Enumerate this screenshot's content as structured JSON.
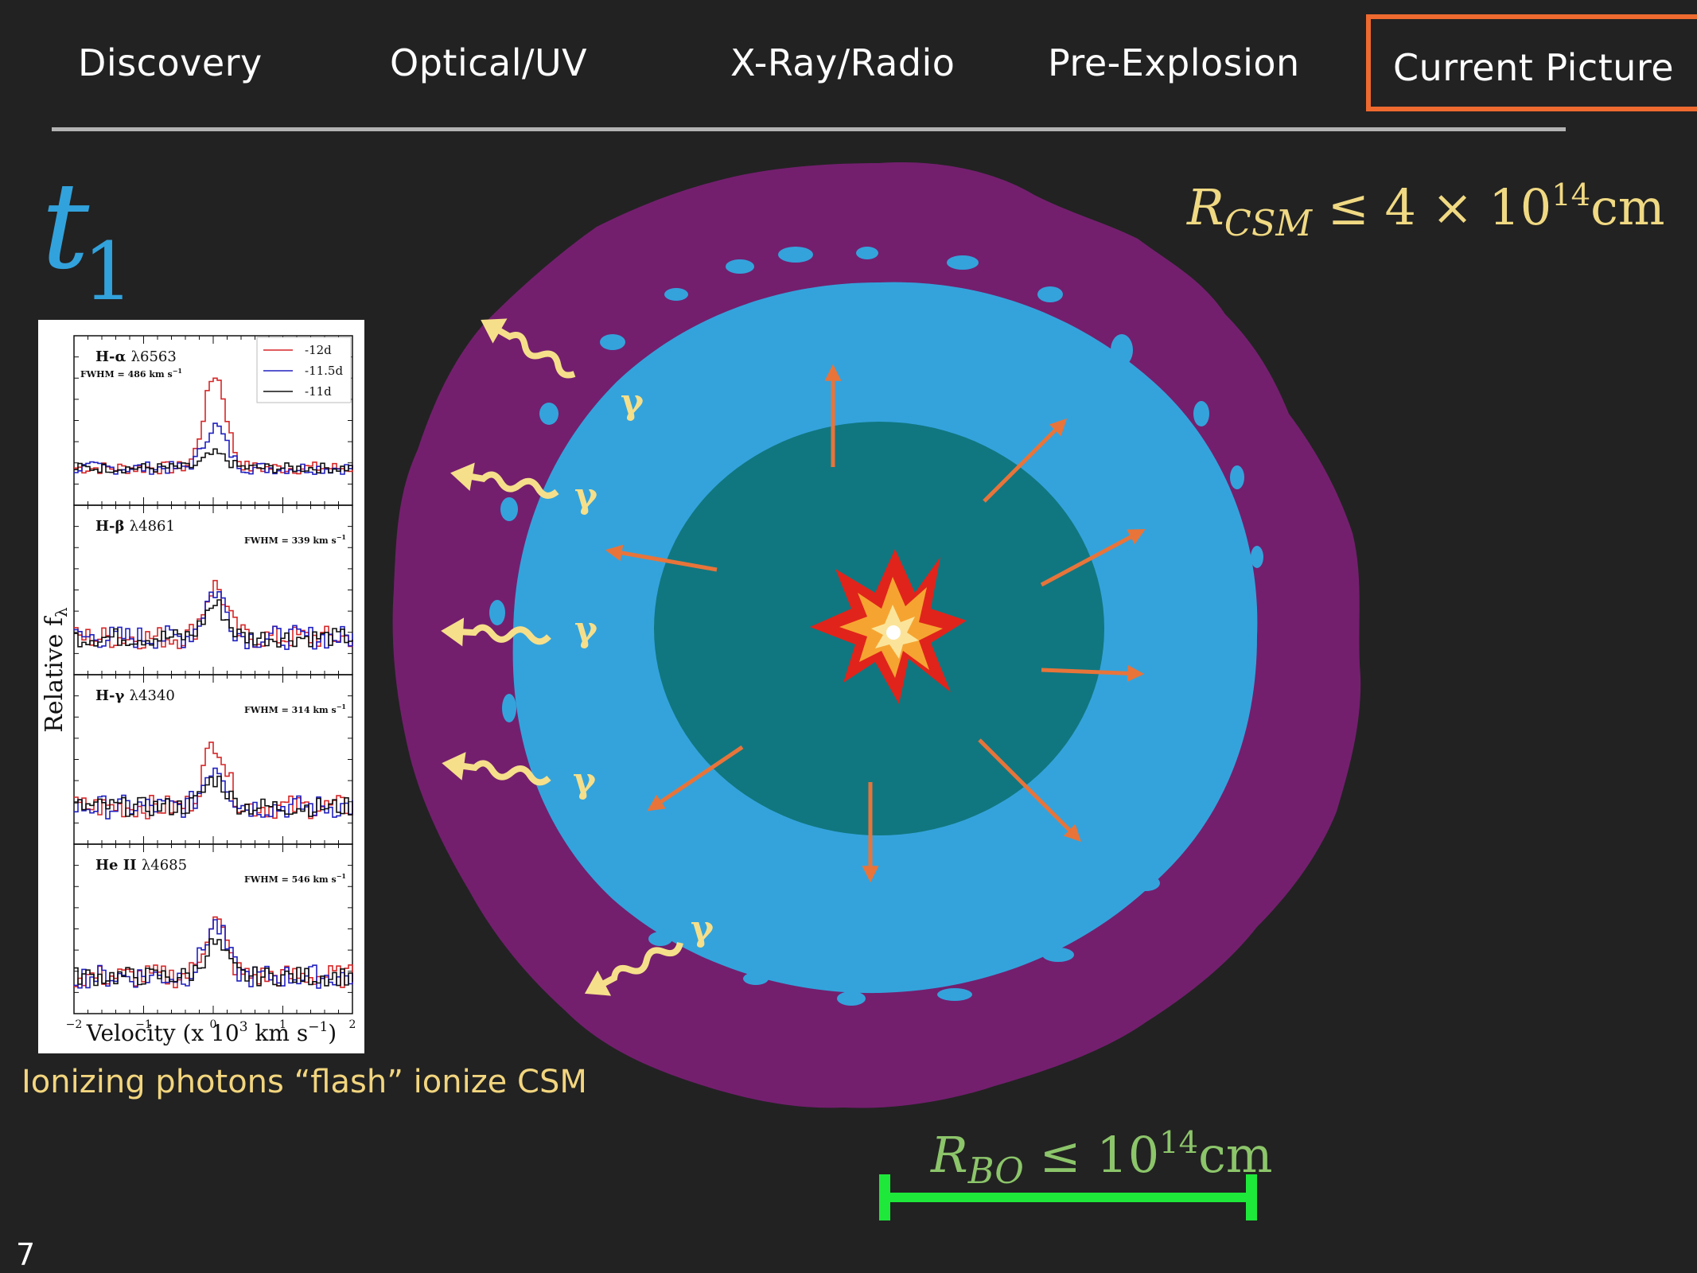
{
  "nav": {
    "items": [
      {
        "label": "Discovery"
      },
      {
        "label": "Optical/UV"
      },
      {
        "label": "X-Ray/Radio"
      },
      {
        "label": "Pre-Explosion"
      },
      {
        "label": "Current Picture"
      }
    ],
    "active_index": 4,
    "active_color": "#ee6a2f"
  },
  "epoch_label": {
    "letter": "t",
    "subscript": "1"
  },
  "csm_radius": {
    "symbol": "R",
    "subscript": "CSM",
    "relation": " ≤ 4 × 10",
    "exponent": "14",
    "unit": "cm"
  },
  "breakout_radius": {
    "symbol": "R",
    "subscript": "BO",
    "relation": " ≤ 10",
    "exponent": "14",
    "unit": "cm"
  },
  "caption": "Ionizing photons “flash” ionize CSM",
  "page_number": "7",
  "photon_label": "γ",
  "spectra_panel": {
    "ylabel": "Relative f",
    "ylabel_sub": "λ",
    "xlabel": "Velocity (x 10",
    "xlabel_exp": "3",
    "xlabel_unit": " km s",
    "xlabel_unit_exp": "−1",
    "xlabel_close": ")",
    "xticks": [
      "−2",
      "−1",
      "0",
      "1",
      "2"
    ],
    "legend": [
      {
        "label": "-12d",
        "color": "#d62728"
      },
      {
        "label": "-11.5d",
        "color": "#2020c0"
      },
      {
        "label": "-11d",
        "color": "#111111"
      }
    ],
    "lines": [
      {
        "name": "H-α",
        "wavelength": "λ6563",
        "fwhm": "FWHM = 486 km s",
        "fwhm_exp": "−1"
      },
      {
        "name": "H-β",
        "wavelength": "λ4861",
        "fwhm": "FWHM = 339 km s",
        "fwhm_exp": "−1"
      },
      {
        "name": "H-γ",
        "wavelength": "λ4340",
        "fwhm": "FWHM = 314 km s",
        "fwhm_exp": "−1"
      },
      {
        "name": "He II",
        "wavelength": "λ4685",
        "fwhm": "FWHM = 546 km s",
        "fwhm_exp": "−1"
      }
    ]
  },
  "colors": {
    "background": "#222222",
    "csm_outer": "#731f6e",
    "ionized_shell": "#34a3dc",
    "ejecta_core": "#107780",
    "expansion_arrows": "#e8743a",
    "photon_arrows": "#f6df8a",
    "scale_bar": "#1ee83a"
  }
}
